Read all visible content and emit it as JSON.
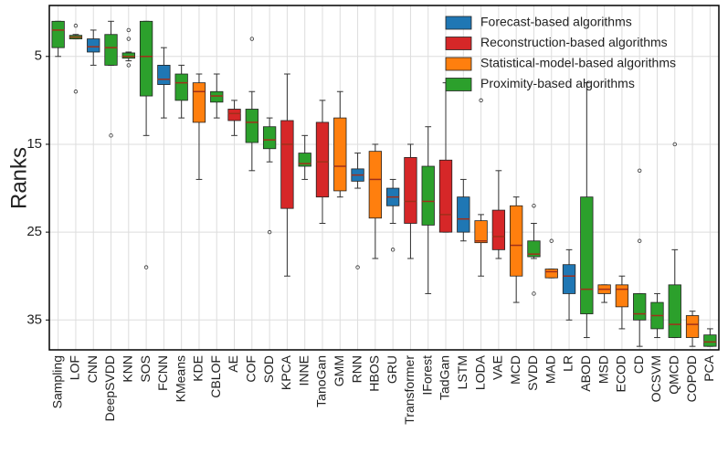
{
  "chart_data": {
    "type": "box",
    "y_label": "Ranks",
    "ylim": [
      38.4,
      -0.8
    ],
    "yticks": [
      5,
      15,
      25,
      35
    ],
    "grid": true,
    "legend": "upper right",
    "median_color": "#a0301a",
    "series": [
      {
        "name": "Forecast-based algorithms",
        "color": "#1f77b4"
      },
      {
        "name": "Reconstruction-based algorithms",
        "color": "#d62728"
      },
      {
        "name": "Statistical-model-based algorithms",
        "color": "#ff7f0e"
      },
      {
        "name": "Proximity-based algorithms",
        "color": "#2ca02c"
      }
    ],
    "categories": [
      "Sampling",
      "LOF",
      "CNN",
      "DeepSVDD",
      "KNN",
      "SOS",
      "FCNN",
      "KMeans",
      "KDE",
      "CBLOF",
      "AE",
      "COF",
      "SOD",
      "KPCA",
      "INNE",
      "TanoGan",
      "GMM",
      "RNN",
      "HBOS",
      "GRU",
      "Transformer",
      "IForest",
      "TadGan",
      "LSTM",
      "LODA",
      "VAE",
      "MCD",
      "SVDD",
      "MAD",
      "LR",
      "ABOD",
      "MSD",
      "ECOD",
      "CD",
      "OCSVM",
      "QMCD",
      "COPOD",
      "PCA"
    ],
    "boxes": [
      {
        "series": 3,
        "whisker_low": 1,
        "q1": 1,
        "median": 2,
        "q3": 4,
        "whisker_high": 5,
        "outliers": []
      },
      {
        "series": 3,
        "whisker_low": 2.5,
        "q1": 2.6,
        "median": 2.8,
        "q3": 3,
        "whisker_high": 3,
        "outliers": [
          1.5,
          9
        ]
      },
      {
        "series": 0,
        "whisker_low": 2,
        "q1": 3,
        "median": 3.9,
        "q3": 4.5,
        "whisker_high": 6,
        "outliers": []
      },
      {
        "series": 3,
        "whisker_low": 1,
        "q1": 2.5,
        "median": 4,
        "q3": 6,
        "whisker_high": 6,
        "outliers": [
          14
        ]
      },
      {
        "series": 3,
        "whisker_low": 4.5,
        "q1": 4.6,
        "median": 5,
        "q3": 5.2,
        "whisker_high": 5.5,
        "outliers": [
          2,
          3,
          6
        ]
      },
      {
        "series": 3,
        "whisker_low": 1,
        "q1": 1,
        "median": 5,
        "q3": 9.5,
        "whisker_high": 14,
        "outliers": [
          29
        ]
      },
      {
        "series": 0,
        "whisker_low": 4,
        "q1": 6,
        "median": 7.6,
        "q3": 8.2,
        "whisker_high": 12,
        "outliers": []
      },
      {
        "series": 3,
        "whisker_low": 6,
        "q1": 7,
        "median": 8,
        "q3": 10,
        "whisker_high": 12,
        "outliers": []
      },
      {
        "series": 2,
        "whisker_low": 7,
        "q1": 8,
        "median": 9,
        "q3": 12.5,
        "whisker_high": 19,
        "outliers": []
      },
      {
        "series": 3,
        "whisker_low": 7,
        "q1": 9,
        "median": 9.5,
        "q3": 10.2,
        "whisker_high": 12,
        "outliers": []
      },
      {
        "series": 1,
        "whisker_low": 10,
        "q1": 11,
        "median": 11.5,
        "q3": 12.3,
        "whisker_high": 14,
        "outliers": []
      },
      {
        "series": 3,
        "whisker_low": 9,
        "q1": 11,
        "median": 12.5,
        "q3": 14.8,
        "whisker_high": 18,
        "outliers": [
          3
        ]
      },
      {
        "series": 3,
        "whisker_low": 12,
        "q1": 13,
        "median": 14.5,
        "q3": 15.5,
        "whisker_high": 17,
        "outliers": [
          25
        ]
      },
      {
        "series": 1,
        "whisker_low": 7,
        "q1": 12.3,
        "median": 15,
        "q3": 22.3,
        "whisker_high": 30,
        "outliers": []
      },
      {
        "series": 3,
        "whisker_low": 14,
        "q1": 16,
        "median": 17.2,
        "q3": 17.5,
        "whisker_high": 19,
        "outliers": []
      },
      {
        "series": 1,
        "whisker_low": 10,
        "q1": 12.5,
        "median": 17,
        "q3": 21,
        "whisker_high": 24,
        "outliers": []
      },
      {
        "series": 2,
        "whisker_low": 9,
        "q1": 12,
        "median": 17.5,
        "q3": 20.3,
        "whisker_high": 21,
        "outliers": []
      },
      {
        "series": 0,
        "whisker_low": 16,
        "q1": 17.8,
        "median": 18.5,
        "q3": 19.2,
        "whisker_high": 20,
        "outliers": [
          29
        ]
      },
      {
        "series": 2,
        "whisker_low": 15,
        "q1": 15.8,
        "median": 19,
        "q3": 23.4,
        "whisker_high": 28,
        "outliers": []
      },
      {
        "series": 0,
        "whisker_low": 19,
        "q1": 20,
        "median": 21,
        "q3": 22,
        "whisker_high": 24,
        "outliers": [
          27
        ]
      },
      {
        "series": 1,
        "whisker_low": 15,
        "q1": 16.5,
        "median": 21.5,
        "q3": 24,
        "whisker_high": 28,
        "outliers": []
      },
      {
        "series": 3,
        "whisker_low": 13,
        "q1": 17.5,
        "median": 21.5,
        "q3": 24.2,
        "whisker_high": 32,
        "outliers": []
      },
      {
        "series": 1,
        "whisker_low": 8,
        "q1": 16.8,
        "median": 23,
        "q3": 25,
        "whisker_high": 25,
        "outliers": []
      },
      {
        "series": 0,
        "whisker_low": 19,
        "q1": 21,
        "median": 23.5,
        "q3": 25,
        "whisker_high": 26,
        "outliers": []
      },
      {
        "series": 2,
        "whisker_low": 23,
        "q1": 23.7,
        "median": 26,
        "q3": 26.2,
        "whisker_high": 30,
        "outliers": [
          10
        ]
      },
      {
        "series": 1,
        "whisker_low": 18,
        "q1": 22.5,
        "median": 25.5,
        "q3": 27,
        "whisker_high": 28,
        "outliers": []
      },
      {
        "series": 2,
        "whisker_low": 21,
        "q1": 22,
        "median": 26.5,
        "q3": 30,
        "whisker_high": 33,
        "outliers": []
      },
      {
        "series": 3,
        "whisker_low": 24,
        "q1": 26,
        "median": 27.5,
        "q3": 27.8,
        "whisker_high": 28,
        "outliers": [
          22,
          32
        ]
      },
      {
        "series": 2,
        "whisker_low": 29.2,
        "q1": 29.2,
        "median": 29.5,
        "q3": 30.2,
        "whisker_high": 30.2,
        "outliers": [
          26
        ]
      },
      {
        "series": 0,
        "whisker_low": 27,
        "q1": 28.7,
        "median": 30,
        "q3": 32,
        "whisker_high": 35,
        "outliers": []
      },
      {
        "series": 3,
        "whisker_low": 8,
        "q1": 21,
        "median": 31.5,
        "q3": 34.3,
        "whisker_high": 37,
        "outliers": []
      },
      {
        "series": 2,
        "whisker_low": 31,
        "q1": 31,
        "median": 31.5,
        "q3": 32,
        "whisker_high": 33,
        "outliers": []
      },
      {
        "series": 2,
        "whisker_low": 30,
        "q1": 31,
        "median": 31.5,
        "q3": 33.5,
        "whisker_high": 36,
        "outliers": []
      },
      {
        "series": 3,
        "whisker_low": 32,
        "q1": 32,
        "median": 34.3,
        "q3": 35,
        "whisker_high": 38,
        "outliers": [
          18,
          26
        ]
      },
      {
        "series": 3,
        "whisker_low": 32,
        "q1": 33,
        "median": 34.5,
        "q3": 36,
        "whisker_high": 37,
        "outliers": []
      },
      {
        "series": 3,
        "whisker_low": 27,
        "q1": 31,
        "median": 35.5,
        "q3": 37,
        "whisker_high": 37,
        "outliers": [
          15
        ]
      },
      {
        "series": 2,
        "whisker_low": 34,
        "q1": 34.5,
        "median": 35.5,
        "q3": 37,
        "whisker_high": 38,
        "outliers": []
      },
      {
        "series": 3,
        "whisker_low": 36,
        "q1": 36.7,
        "median": 37.5,
        "q3": 38,
        "whisker_high": 38,
        "outliers": []
      }
    ]
  }
}
